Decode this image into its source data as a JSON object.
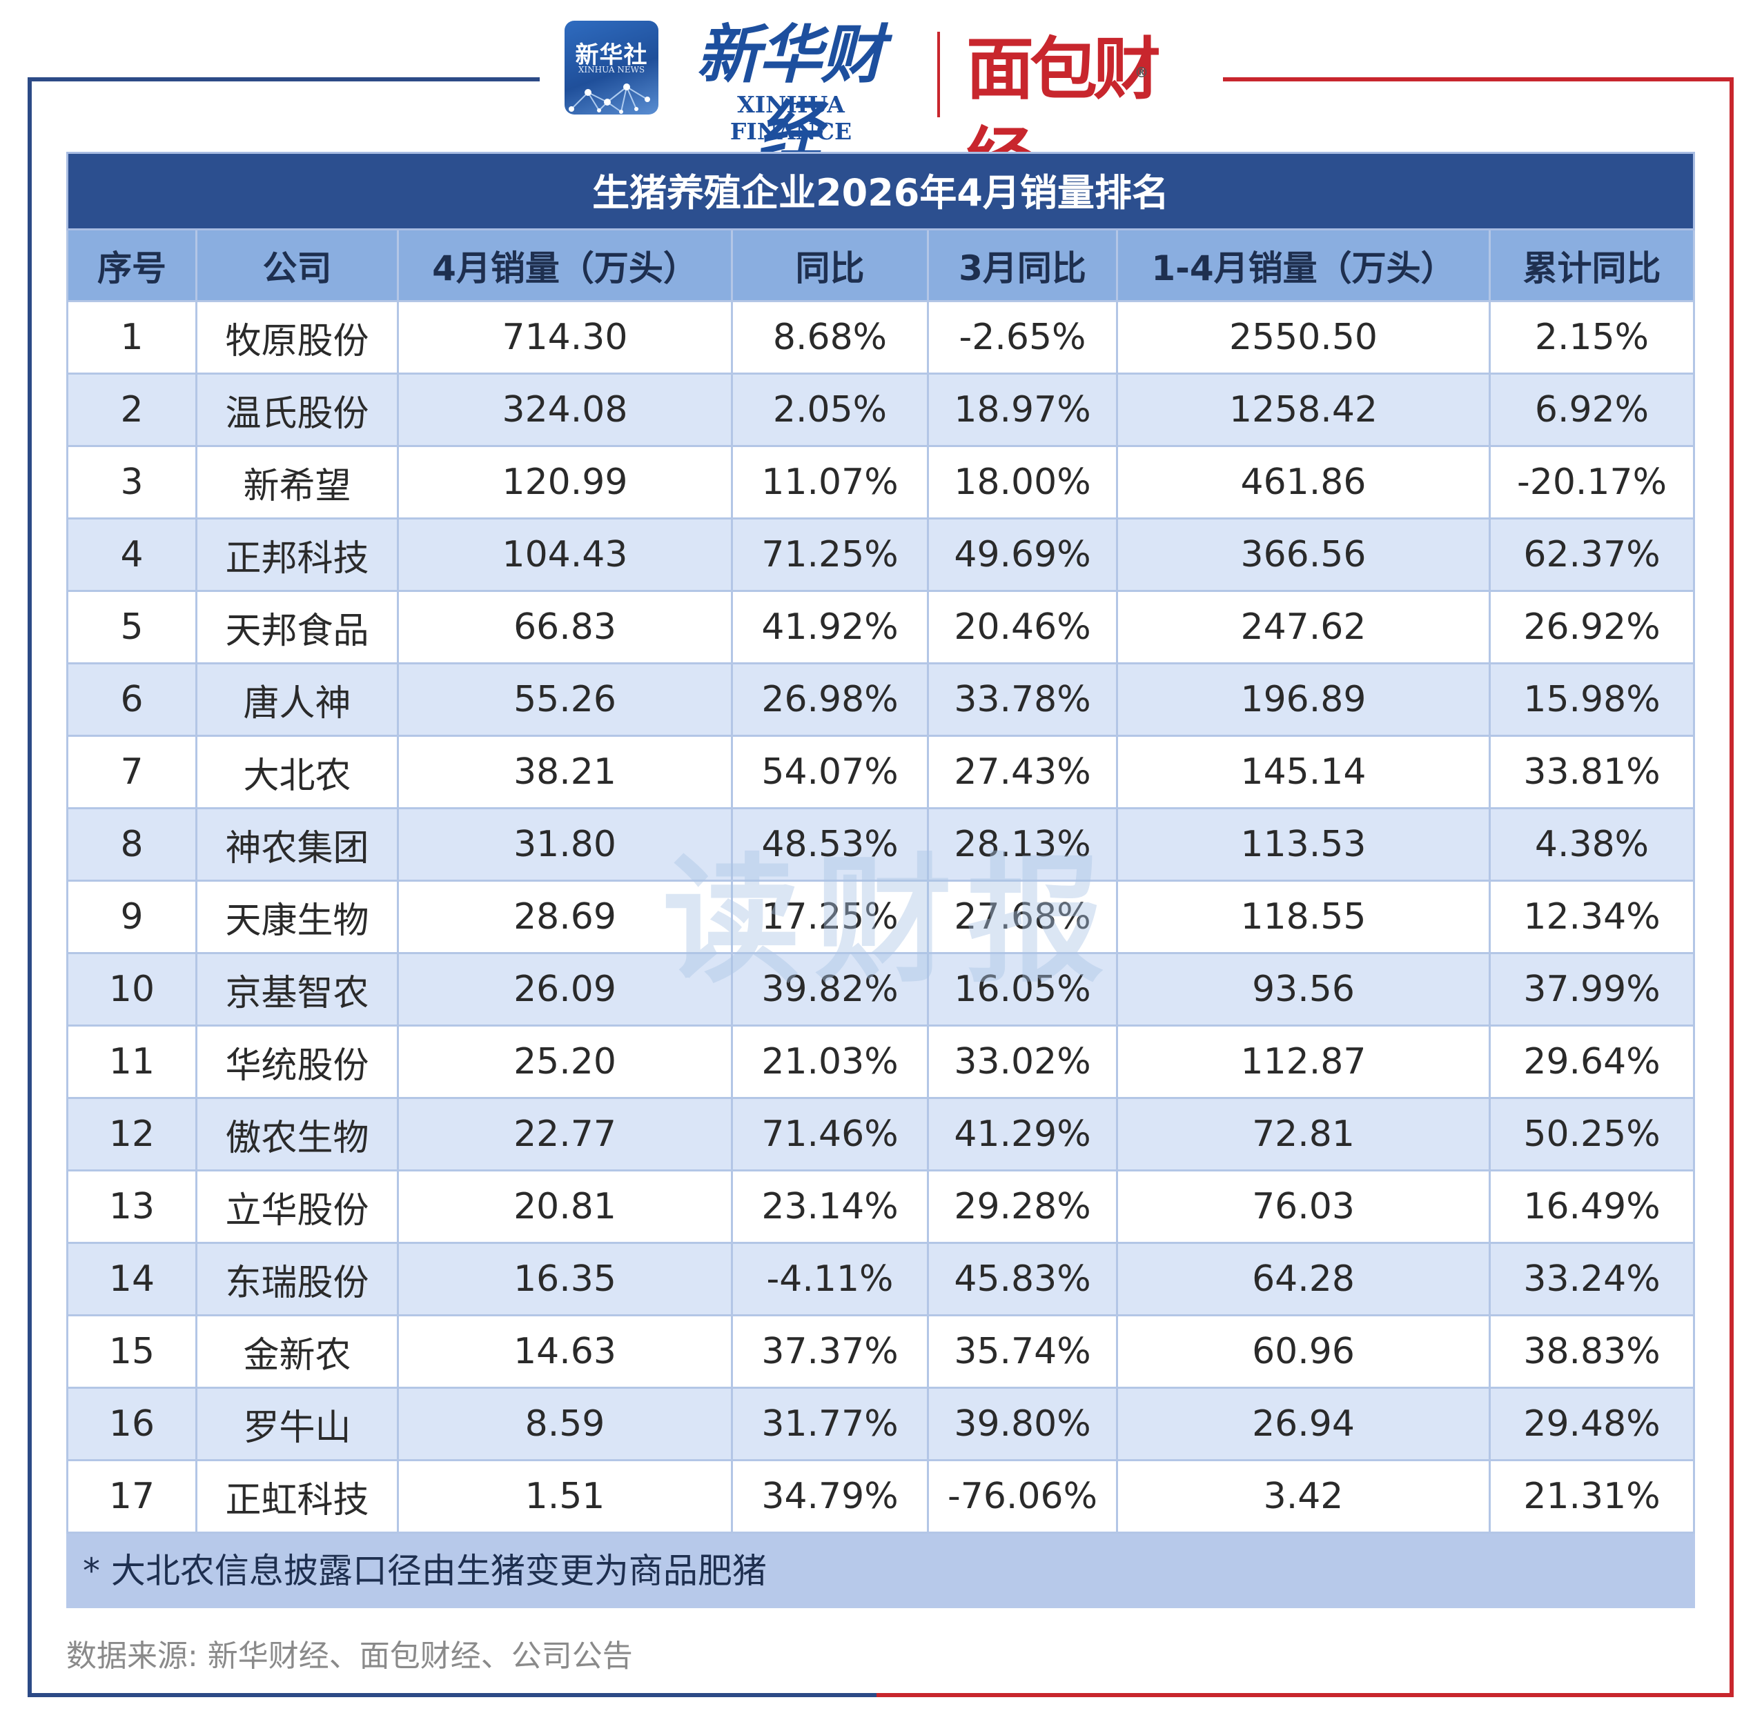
{
  "header": {
    "xinhuashe_logo_cn": "新华社",
    "xinhuashe_logo_en": "XINHUA NEWS",
    "xinhua_finance_cn": "新华财经",
    "xinhua_finance_en": "XINHUA FINANCE",
    "mianbao_caijing": "面包财经",
    "registered_mark": "®"
  },
  "table": {
    "title": "生猪养殖企业2026年4月销量排名",
    "columns": [
      "序号",
      "公司",
      "4月销量（万头）",
      "同比",
      "3月同比",
      "1-4月销量（万头）",
      "累计同比"
    ],
    "rows": [
      [
        "1",
        "牧原股份",
        "714.30",
        "8.68%",
        "-2.65%",
        "2550.50",
        "2.15%"
      ],
      [
        "2",
        "温氏股份",
        "324.08",
        "2.05%",
        "18.97%",
        "1258.42",
        "6.92%"
      ],
      [
        "3",
        "新希望",
        "120.99",
        "11.07%",
        "18.00%",
        "461.86",
        "-20.17%"
      ],
      [
        "4",
        "正邦科技",
        "104.43",
        "71.25%",
        "49.69%",
        "366.56",
        "62.37%"
      ],
      [
        "5",
        "天邦食品",
        "66.83",
        "41.92%",
        "20.46%",
        "247.62",
        "26.92%"
      ],
      [
        "6",
        "唐人神",
        "55.26",
        "26.98%",
        "33.78%",
        "196.89",
        "15.98%"
      ],
      [
        "7",
        "大北农",
        "38.21",
        "54.07%",
        "27.43%",
        "145.14",
        "33.81%"
      ],
      [
        "8",
        "神农集团",
        "31.80",
        "48.53%",
        "28.13%",
        "113.53",
        "4.38%"
      ],
      [
        "9",
        "天康生物",
        "28.69",
        "17.25%",
        "27.68%",
        "118.55",
        "12.34%"
      ],
      [
        "10",
        "京基智农",
        "26.09",
        "39.82%",
        "16.05%",
        "93.56",
        "37.99%"
      ],
      [
        "11",
        "华统股份",
        "25.20",
        "21.03%",
        "33.02%",
        "112.87",
        "29.64%"
      ],
      [
        "12",
        "傲农生物",
        "22.77",
        "71.46%",
        "41.29%",
        "72.81",
        "50.25%"
      ],
      [
        "13",
        "立华股份",
        "20.81",
        "23.14%",
        "29.28%",
        "76.03",
        "16.49%"
      ],
      [
        "14",
        "东瑞股份",
        "16.35",
        "-4.11%",
        "45.83%",
        "64.28",
        "33.24%"
      ],
      [
        "15",
        "金新农",
        "14.63",
        "37.37%",
        "35.74%",
        "60.96",
        "38.83%"
      ],
      [
        "16",
        "罗牛山",
        "8.59",
        "31.77%",
        "39.80%",
        "26.94",
        "29.48%"
      ],
      [
        "17",
        "正虹科技",
        "1.51",
        "34.79%",
        "-76.06%",
        "3.42",
        "21.31%"
      ]
    ],
    "note": "* 大北农信息披露口径由生猪变更为商品肥猪"
  },
  "source": "数据来源: 新华财经、面包财经、公司公告",
  "watermark": "读财报",
  "colors": {
    "frame_blue": "#2c4a86",
    "frame_red": "#c8262d",
    "title_bg": "#2c4f8f",
    "header_bg": "#8aaee0",
    "stripe_bg": "#dae5f7",
    "note_bg": "#b7c9ea"
  }
}
